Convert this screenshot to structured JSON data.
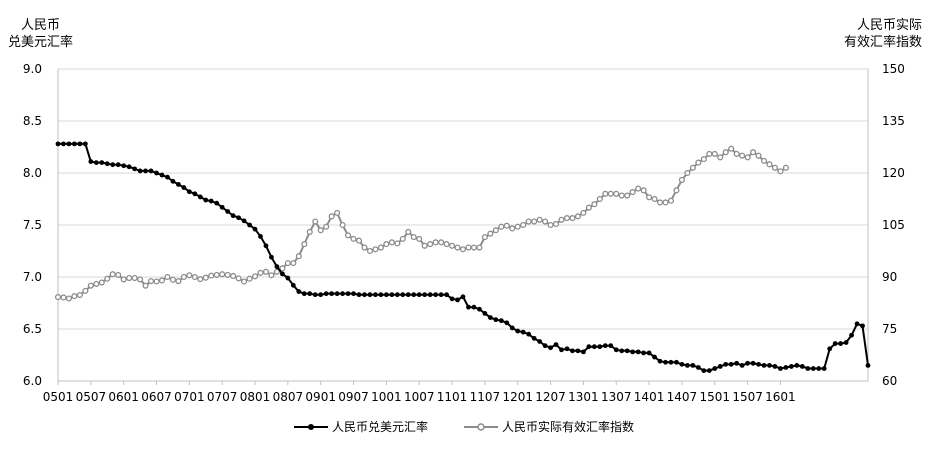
{
  "left_title_line1": "人民币",
  "left_title_line2": "兑美元汇率",
  "right_title_line1": "人民币实际",
  "right_title_line2": "有效汇率指数",
  "chart_data": {
    "type": "line",
    "x_tick_labels": [
      "0501",
      "0507",
      "0601",
      "0607",
      "0701",
      "0707",
      "0801",
      "0807",
      "0901",
      "0907",
      "1001",
      "1007",
      "1101",
      "1107",
      "1201",
      "1207",
      "1301",
      "1307",
      "1401",
      "1407",
      "1501",
      "1507",
      "1601"
    ],
    "left_axis": {
      "min": 6.0,
      "max": 9.0,
      "ticks": [
        "6.0",
        "6.5",
        "7.0",
        "7.5",
        "8.0",
        "8.5",
        "9.0"
      ]
    },
    "right_axis": {
      "min": 60,
      "max": 150,
      "ticks": [
        "60",
        "75",
        "90",
        "105",
        "120",
        "135",
        "150"
      ]
    },
    "grid": "horizontal",
    "legend_position": "bottom",
    "series": [
      {
        "name": "人民币兑美元汇率",
        "axis": "left",
        "color": "#000000",
        "values": [
          8.28,
          8.28,
          8.28,
          8.28,
          8.28,
          8.28,
          8.11,
          8.1,
          8.1,
          8.09,
          8.08,
          8.08,
          8.07,
          8.06,
          8.04,
          8.02,
          8.02,
          8.02,
          8.0,
          7.98,
          7.96,
          7.92,
          7.89,
          7.86,
          7.82,
          7.8,
          7.77,
          7.74,
          7.73,
          7.71,
          7.67,
          7.63,
          7.59,
          7.57,
          7.54,
          7.5,
          7.46,
          7.39,
          7.3,
          7.19,
          7.1,
          7.03,
          6.99,
          6.92,
          6.86,
          6.84,
          6.84,
          6.83,
          6.83,
          6.84,
          6.84,
          6.84,
          6.84,
          6.84,
          6.84,
          6.83,
          6.83,
          6.83,
          6.83,
          6.83,
          6.83,
          6.83,
          6.83,
          6.83,
          6.83,
          6.83,
          6.83,
          6.83,
          6.83,
          6.83,
          6.83,
          6.83,
          6.79,
          6.78,
          6.81,
          6.71,
          6.71,
          6.69,
          6.65,
          6.61,
          6.59,
          6.58,
          6.56,
          6.51,
          6.48,
          6.47,
          6.45,
          6.41,
          6.38,
          6.34,
          6.32,
          6.35,
          6.3,
          6.31,
          6.29,
          6.29,
          6.28,
          6.33,
          6.33,
          6.33,
          6.34,
          6.34,
          6.3,
          6.29,
          6.29,
          6.28,
          6.28,
          6.27,
          6.27,
          6.23,
          6.19,
          6.18,
          6.18,
          6.18,
          6.16,
          6.15,
          6.15,
          6.13,
          6.1,
          6.1,
          6.12,
          6.14,
          6.16,
          6.16,
          6.17,
          6.15,
          6.17,
          6.17,
          6.16,
          6.15,
          6.15,
          6.14,
          6.12,
          6.13,
          6.14,
          6.15,
          6.14,
          6.12,
          6.12,
          6.12,
          6.12,
          6.31,
          6.36,
          6.36,
          6.37,
          6.44,
          6.55,
          6.53,
          6.15
        ]
      },
      {
        "name": "人民币实际有效汇率指数",
        "axis": "right",
        "color": "#8c8c8c",
        "values": [
          84.2,
          84.1,
          83.8,
          84.5,
          84.8,
          86.0,
          87.5,
          88.0,
          88.4,
          89.5,
          90.8,
          90.6,
          89.3,
          89.7,
          89.7,
          89.3,
          87.5,
          88.8,
          88.7,
          89.0,
          90.0,
          89.2,
          88.8,
          90.0,
          90.5,
          90.0,
          89.4,
          89.8,
          90.4,
          90.6,
          90.8,
          90.6,
          90.3,
          89.6,
          88.7,
          89.5,
          90.2,
          91.2,
          91.5,
          90.5,
          91.5,
          92.5,
          94.0,
          94.0,
          96.0,
          99.5,
          103.0,
          106.0,
          103.5,
          104.5,
          107.5,
          108.5,
          105.0,
          102.0,
          101.0,
          100.5,
          98.5,
          97.5,
          98.0,
          98.5,
          99.5,
          100.0,
          99.7,
          101.0,
          103.0,
          101.5,
          101.0,
          99.0,
          99.5,
          100.0,
          100.0,
          99.5,
          99.0,
          98.5,
          98.0,
          98.5,
          98.5,
          98.5,
          101.5,
          102.5,
          103.5,
          104.5,
          104.8,
          104.0,
          104.5,
          105.0,
          106.0,
          106.0,
          106.5,
          106.0,
          105.0,
          105.3,
          106.5,
          107.0,
          107.0,
          107.5,
          108.5,
          110.0,
          111.0,
          112.5,
          114.0,
          114.0,
          114.0,
          113.5,
          113.5,
          114.5,
          115.5,
          115.0,
          113.0,
          112.5,
          111.5,
          111.5,
          112.0,
          115.0,
          118.0,
          120.0,
          121.5,
          123.0,
          124.0,
          125.5,
          125.5,
          124.5,
          126.0,
          127.0,
          125.5,
          125.0,
          124.5,
          126.0,
          125.0,
          123.5,
          122.5,
          121.5,
          120.5,
          121.5
        ]
      }
    ]
  }
}
